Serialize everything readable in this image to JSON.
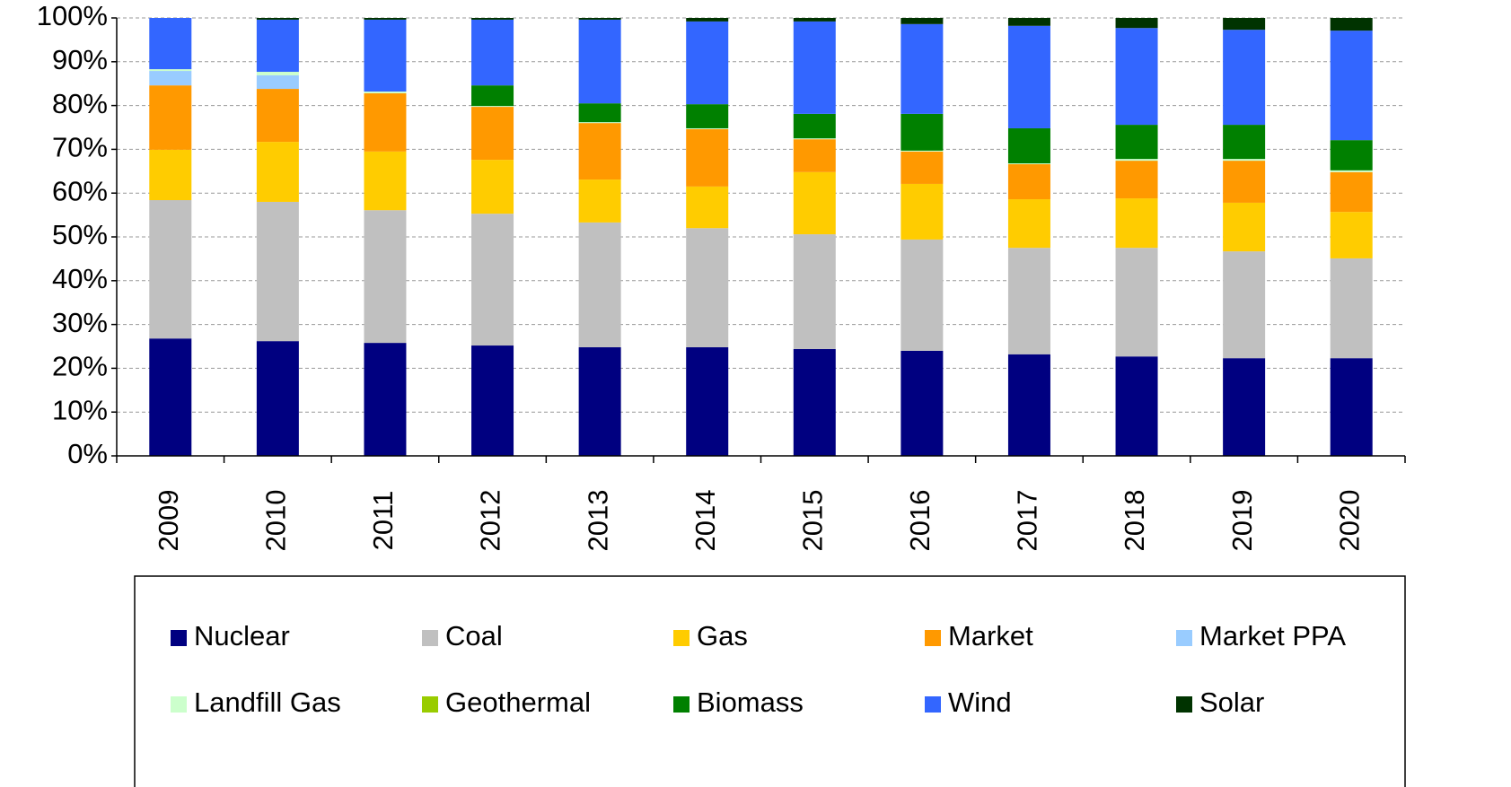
{
  "chart_data": {
    "type": "stacked-bar",
    "categories": [
      "2009",
      "2010",
      "2011",
      "2012",
      "2013",
      "2014",
      "2015",
      "2016",
      "2017",
      "2018",
      "2019",
      "2020"
    ],
    "series": [
      {
        "name": "Nuclear",
        "color": "#000080",
        "values": [
          26.8,
          26.2,
          25.8,
          25.2,
          24.8,
          24.8,
          24.4,
          24.0,
          23.2,
          22.7,
          22.3,
          22.3
        ]
      },
      {
        "name": "Coal",
        "color": "#c0c0c0",
        "values": [
          31.6,
          31.8,
          30.3,
          30.1,
          28.5,
          27.2,
          26.2,
          25.4,
          24.3,
          24.8,
          24.4,
          22.8
        ]
      },
      {
        "name": "Gas",
        "color": "#ffcc00",
        "values": [
          11.5,
          13.7,
          13.4,
          12.3,
          9.8,
          9.5,
          14.2,
          12.7,
          11.1,
          11.3,
          11.1,
          10.6
        ]
      },
      {
        "name": "Market",
        "color": "#ff9900",
        "values": [
          14.7,
          12.1,
          13.3,
          12.1,
          12.9,
          13.1,
          7.5,
          7.4,
          8.0,
          8.6,
          9.6,
          9.1
        ]
      },
      {
        "name": "Market PPA",
        "color": "#99ccff",
        "values": [
          3.3,
          3.1,
          0,
          0,
          0,
          0,
          0,
          0,
          0,
          0,
          0,
          0
        ]
      },
      {
        "name": "Landfill Gas",
        "color": "#ccffcc",
        "values": [
          0.4,
          0.8,
          0.4,
          0.2,
          0.2,
          0.2,
          0.2,
          0.2,
          0.2,
          0.4,
          0.4,
          0.4
        ]
      },
      {
        "name": "Geothermal",
        "color": "#99cc00",
        "values": [
          0,
          0,
          0,
          0,
          0,
          0,
          0,
          0,
          0,
          0,
          0,
          0
        ]
      },
      {
        "name": "Biomass",
        "color": "#008000",
        "values": [
          0,
          0,
          0,
          4.7,
          4.3,
          5.5,
          5.6,
          8.4,
          8.0,
          7.8,
          7.8,
          6.9
        ]
      },
      {
        "name": "Wind",
        "color": "#3366ff",
        "values": [
          11.7,
          11.9,
          16.4,
          15.0,
          19.1,
          18.9,
          21.1,
          20.5,
          23.4,
          22.1,
          21.7,
          25.0
        ]
      },
      {
        "name": "Solar",
        "color": "#003300",
        "values": [
          0,
          0.4,
          0.4,
          0.4,
          0.4,
          0.8,
          0.8,
          1.4,
          1.8,
          2.3,
          2.7,
          2.9
        ]
      }
    ],
    "ylim": [
      0,
      100
    ],
    "yticks": [
      {
        "value": 0,
        "label": "0%"
      },
      {
        "value": 10,
        "label": "10%"
      },
      {
        "value": 20,
        "label": "20%"
      },
      {
        "value": 30,
        "label": "30%"
      },
      {
        "value": 40,
        "label": "40%"
      },
      {
        "value": 50,
        "label": "50%"
      },
      {
        "value": 60,
        "label": "60%"
      },
      {
        "value": 70,
        "label": "70%"
      },
      {
        "value": 80,
        "label": "80%"
      },
      {
        "value": 90,
        "label": "90%"
      },
      {
        "value": 100,
        "label": "100%"
      }
    ],
    "grid": true,
    "legend": "bottom"
  }
}
